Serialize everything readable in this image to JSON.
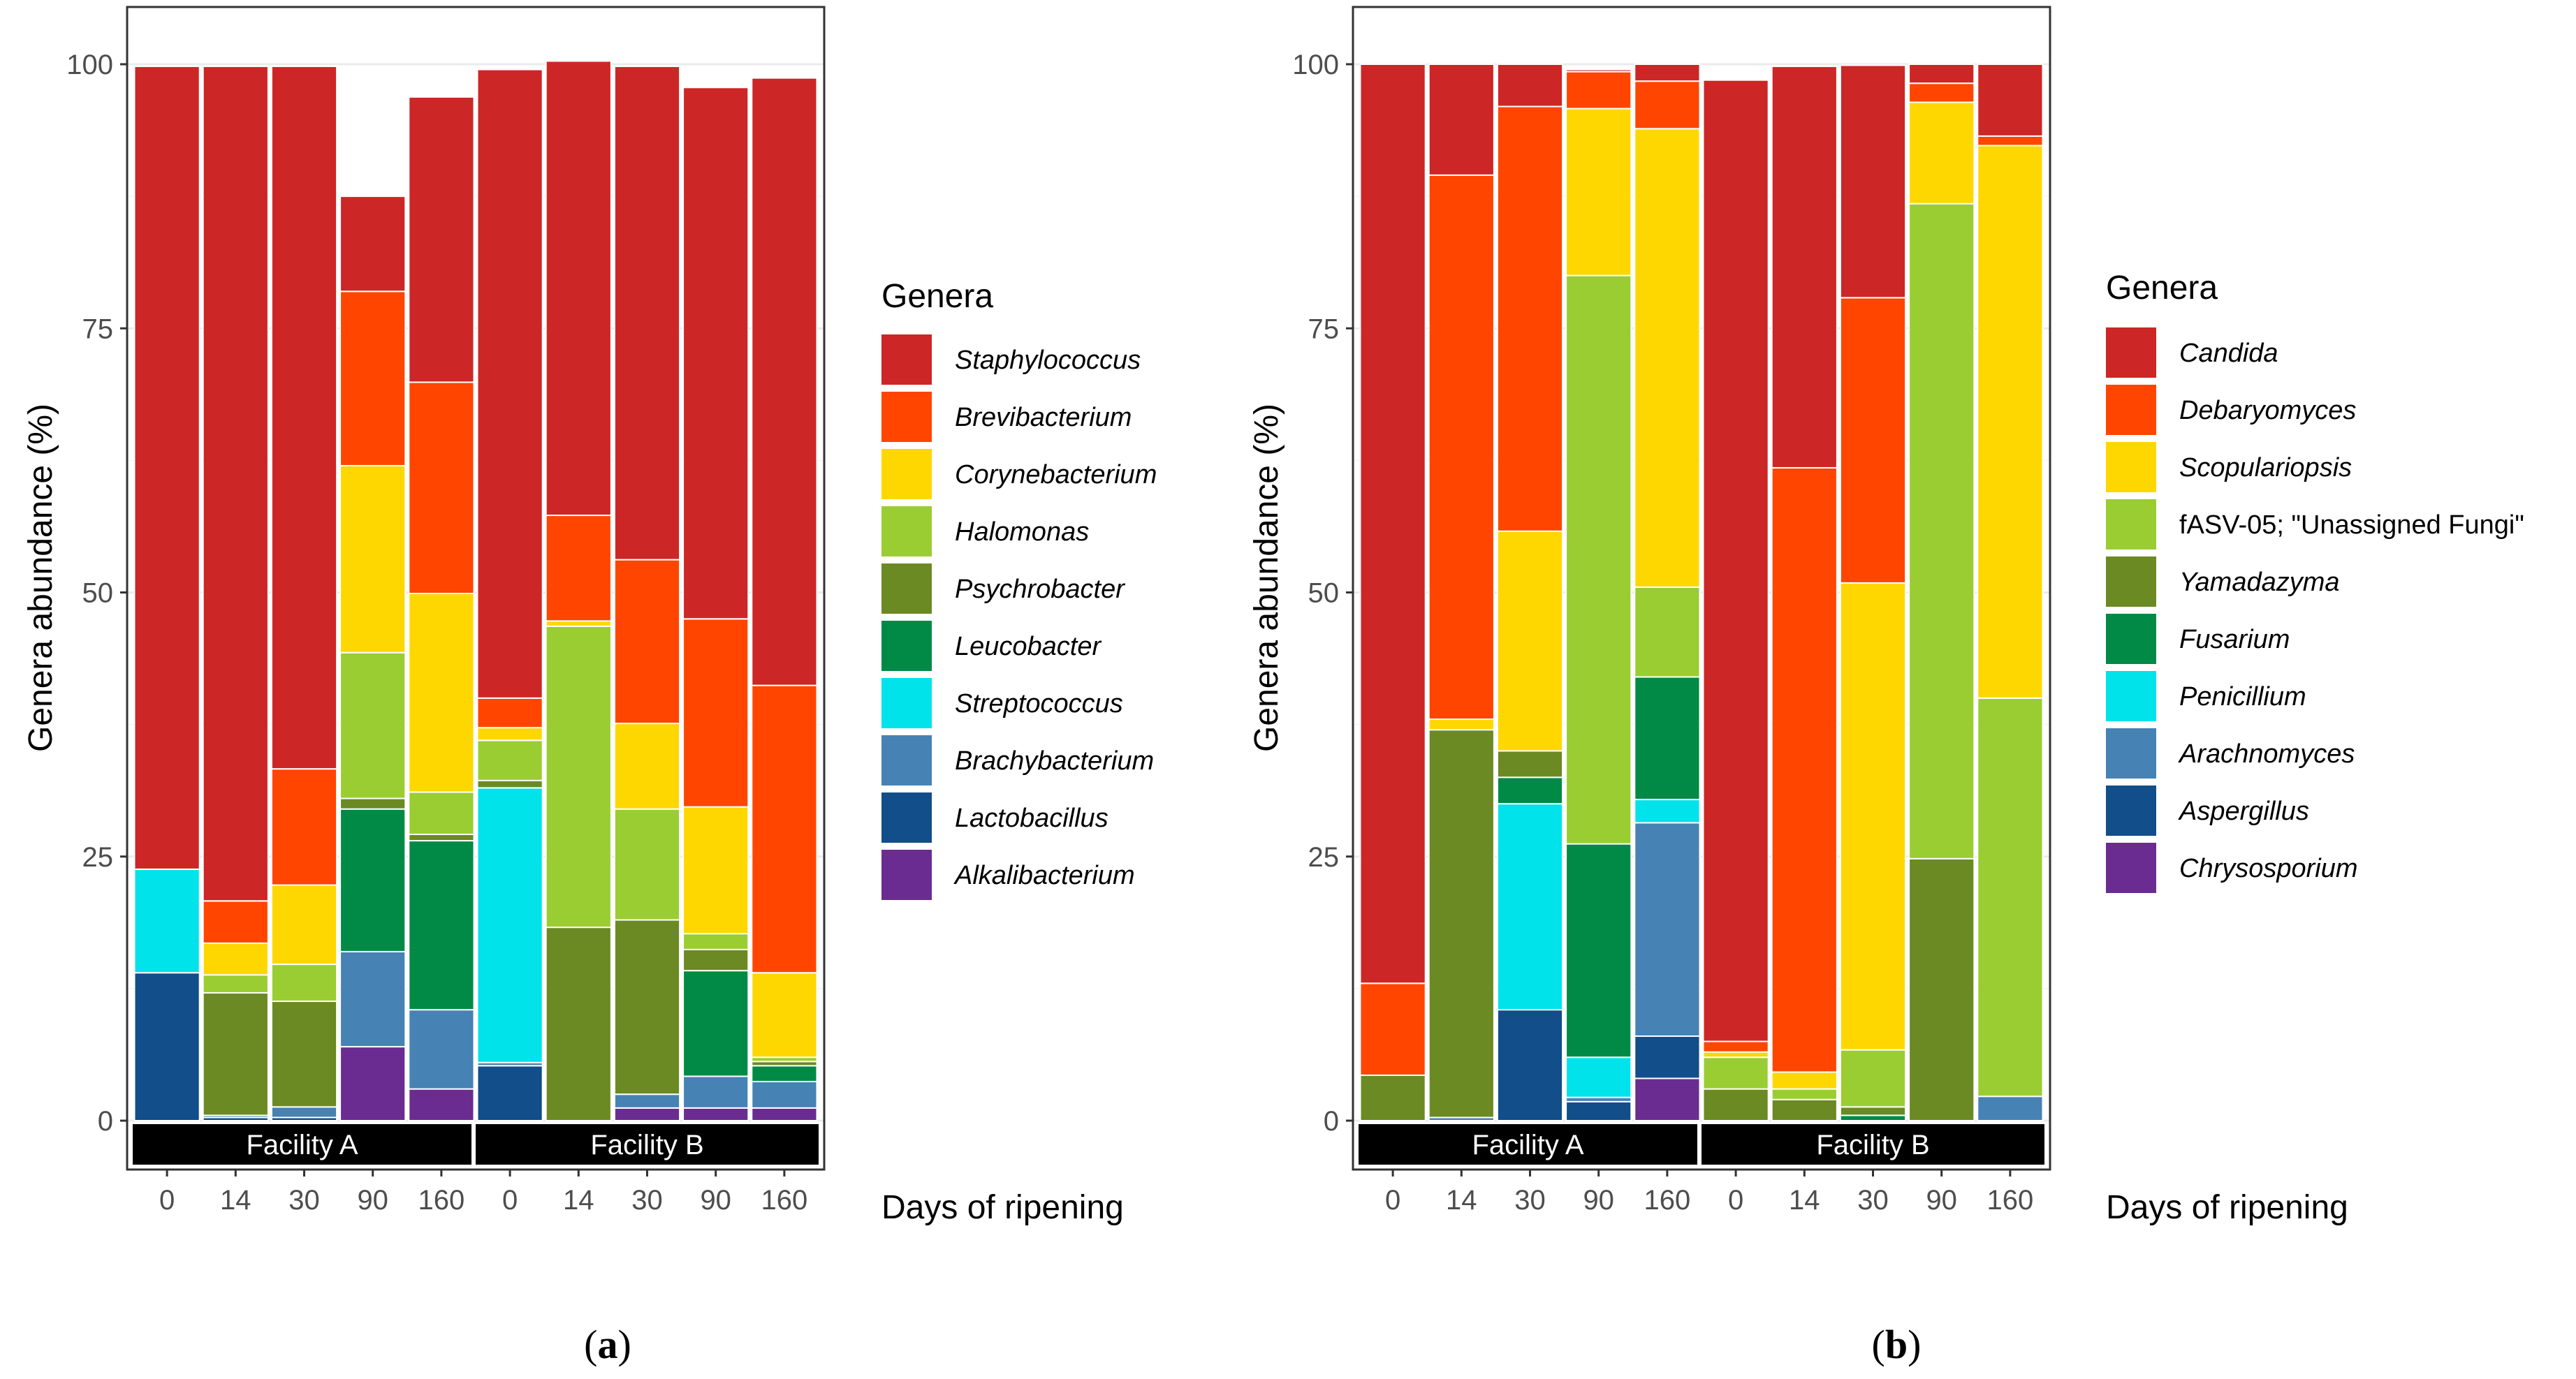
{
  "chart_data": [
    {
      "panel_label": "a",
      "type": "stacked-bar",
      "ylabel": "Genera abundance (%)",
      "xlabel": "Days of ripening",
      "ylim": [
        0,
        100
      ],
      "yticks": [
        0,
        25,
        50,
        75,
        100
      ],
      "legend_title": "Genera",
      "legend_position": "right",
      "facets": [
        {
          "label": "Facility A",
          "categories": [
            "0",
            "14",
            "30",
            "90",
            "160"
          ]
        },
        {
          "label": "Facility B",
          "categories": [
            "0",
            "14",
            "30",
            "90",
            "160"
          ]
        }
      ],
      "series": [
        {
          "name": "Alkalibacterium",
          "color": "#6a2c91",
          "italic": true,
          "values": [
            0,
            0,
            0,
            7,
            3,
            0,
            0,
            1.2,
            1.2,
            1.2
          ]
        },
        {
          "name": "Lactobacillus",
          "color": "#114e8a",
          "italic": true,
          "values": [
            14,
            0.3,
            0.3,
            0,
            0,
            5.2,
            0,
            0,
            0,
            0
          ]
        },
        {
          "name": "Brachybacterium",
          "color": "#4682b4",
          "italic": true,
          "values": [
            0,
            0.2,
            1,
            9,
            7.5,
            0.3,
            0,
            1.3,
            3,
            2.5
          ]
        },
        {
          "name": "Streptococcus",
          "color": "#00e3eb",
          "italic": true,
          "values": [
            9.8,
            0,
            0,
            0,
            0,
            26,
            0,
            0,
            0,
            0
          ]
        },
        {
          "name": "Leucobacter",
          "color": "#008a45",
          "italic": true,
          "values": [
            0,
            0,
            0,
            13.5,
            16,
            0,
            0,
            0,
            10,
            1.5
          ]
        },
        {
          "name": "Psychrobacter",
          "color": "#6b8a23",
          "italic": true,
          "values": [
            0,
            11.6,
            10,
            1,
            0.6,
            0.7,
            18.3,
            16.5,
            2,
            0.4
          ]
        },
        {
          "name": "Halomonas",
          "color": "#9acd32",
          "italic": true,
          "values": [
            0,
            1.7,
            3.5,
            13.8,
            4,
            3.8,
            28.5,
            10.5,
            1.5,
            0.4
          ]
        },
        {
          "name": "Corynebacterium",
          "color": "#ffd700",
          "italic": true,
          "values": [
            0,
            3,
            7.5,
            17.7,
            18.8,
            1.2,
            0.5,
            8.1,
            12,
            8
          ]
        },
        {
          "name": "Brevibacterium",
          "color": "#ff4500",
          "italic": true,
          "values": [
            0,
            4,
            11,
            16.5,
            20,
            2.8,
            10,
            15.5,
            17.8,
            27.2
          ]
        },
        {
          "name": "Staphylococcus",
          "color": "#cd2626",
          "italic": true,
          "values": [
            76,
            79,
            66.5,
            9,
            27,
            59.5,
            43,
            46.7,
            50.3,
            57.5
          ]
        }
      ],
      "legend_order": [
        "Staphylococcus",
        "Brevibacterium",
        "Corynebacterium",
        "Halomonas",
        "Psychrobacter",
        "Leucobacter",
        "Streptococcus",
        "Brachybacterium",
        "Lactobacillus",
        "Alkalibacterium"
      ]
    },
    {
      "panel_label": "b",
      "type": "stacked-bar",
      "ylabel": "Genera abundance (%)",
      "xlabel": "Days of ripening",
      "ylim": [
        0,
        100
      ],
      "yticks": [
        0,
        25,
        50,
        75,
        100
      ],
      "legend_title": "Genera",
      "legend_position": "right",
      "facets": [
        {
          "label": "Facility A",
          "categories": [
            "0",
            "14",
            "30",
            "90",
            "160"
          ]
        },
        {
          "label": "Facility B",
          "categories": [
            "0",
            "14",
            "30",
            "90",
            "160"
          ]
        }
      ],
      "series": [
        {
          "name": "Chrysosporium",
          "color": "#6a2c91",
          "italic": true,
          "values": [
            0,
            0,
            0,
            0,
            4,
            0,
            0,
            0,
            0,
            0
          ]
        },
        {
          "name": "Aspergillus",
          "color": "#114e8a",
          "italic": true,
          "values": [
            0,
            0,
            10.5,
            1.8,
            4,
            0,
            0,
            0,
            0,
            0
          ]
        },
        {
          "name": "Arachnomyces",
          "color": "#4682b4",
          "italic": true,
          "values": [
            0,
            0.3,
            0,
            0.4,
            20.2,
            0,
            0,
            0,
            0,
            2.3
          ]
        },
        {
          "name": "Penicillium",
          "color": "#00e3eb",
          "italic": true,
          "values": [
            0,
            0,
            19.5,
            3.8,
            2.2,
            0,
            0,
            0,
            0,
            0
          ]
        },
        {
          "name": "Fusarium",
          "color": "#008a45",
          "italic": true,
          "values": [
            0,
            0,
            2.5,
            20.2,
            11.6,
            0,
            0,
            0.5,
            0,
            0
          ]
        },
        {
          "name": "Yamadazyma",
          "color": "#6b8a23",
          "italic": true,
          "values": [
            4.3,
            36.7,
            2.5,
            0,
            0,
            3,
            2,
            0.8,
            24.8,
            0
          ]
        },
        {
          "name": "fASV-05; \"Unassigned Fungi\"",
          "color": "#9acd32",
          "italic": false,
          "values": [
            0,
            0,
            0,
            53.8,
            8.5,
            3,
            1,
            5.4,
            62,
            37.7
          ]
        },
        {
          "name": "Scopulariopsis",
          "color": "#ffd700",
          "italic": true,
          "values": [
            0,
            1,
            20.8,
            15.8,
            43.4,
            0.5,
            1.6,
            44.2,
            9.6,
            52.3
          ]
        },
        {
          "name": "Debaryomyces",
          "color": "#ff4500",
          "italic": true,
          "values": [
            8.7,
            51.5,
            40.2,
            3.5,
            4.5,
            1,
            57.2,
            27,
            1.8,
            0.9
          ]
        },
        {
          "name": "Candida",
          "color": "#cd2626",
          "italic": true,
          "values": [
            87,
            10.5,
            4,
            0.2,
            1.6,
            91,
            38,
            22,
            1.8,
            6.8
          ]
        }
      ],
      "legend_order": [
        "Candida",
        "Debaryomyces",
        "Scopulariopsis",
        "fASV-05; \"Unassigned Fungi\"",
        "Yamadazyma",
        "Fusarium",
        "Penicillium",
        "Arachnomyces",
        "Aspergillus",
        "Chrysosporium"
      ]
    }
  ]
}
